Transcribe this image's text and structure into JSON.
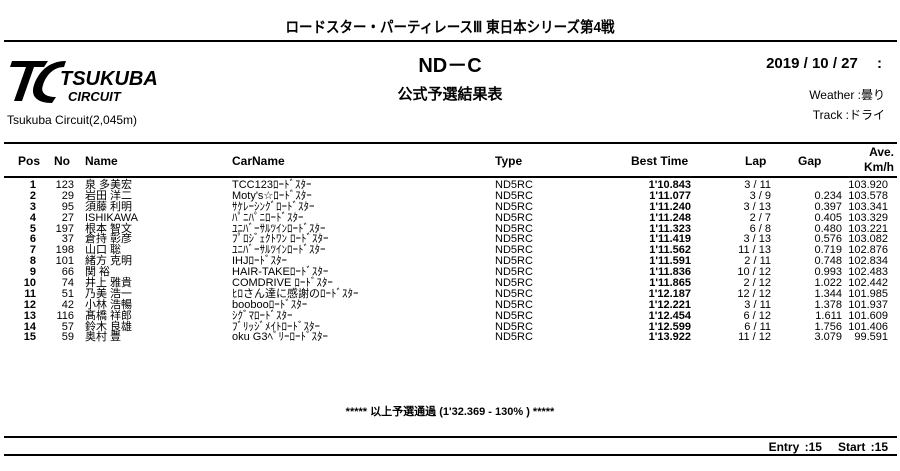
{
  "event_title": "ロードスター・パーティレースⅢ 東日本シリーズ第4戦",
  "logo": {
    "text_main": "TSUKUBA",
    "text_sub": "CIRCUIT",
    "mark": "TC"
  },
  "circuit": "Tsukuba Circuit(2,045m)",
  "class": "ND－C",
  "session": "公式予選結果表",
  "date": "2019 / 10 / 27　 :",
  "weather": "Weather :曇り",
  "track": "Track :ドライ",
  "headers": {
    "pos": "Pos",
    "no": "No",
    "name": "Name",
    "car": "CarName",
    "type": "Type",
    "best": "Best Time",
    "lap": "Lap",
    "gap": "Gap",
    "ave1": "Ave.",
    "ave2": "Km/h"
  },
  "rows": [
    {
      "pos": "1",
      "no": "123",
      "name": "泉 多美宏",
      "car": "TCC123ﾛｰﾄﾞｽﾀｰ",
      "type": "ND5RC",
      "best": "1'10.843",
      "lap": "3 / 11",
      "gap": "",
      "ave": "103.920"
    },
    {
      "pos": "2",
      "no": "29",
      "name": "岩田 洋二",
      "car": "Moty's☆ﾛｰﾄﾞｽﾀｰ",
      "type": "ND5RC",
      "best": "1'11.077",
      "lap": "3 / 9",
      "gap": "0.234",
      "ave": "103.578"
    },
    {
      "pos": "3",
      "no": "95",
      "name": "須藤 利明",
      "car": "ｻｹﾚｰｼﾝｸﾞﾛｰﾄﾞｽﾀｰ",
      "type": "ND5RC",
      "best": "1'11.240",
      "lap": "3 / 13",
      "gap": "0.397",
      "ave": "103.341"
    },
    {
      "pos": "4",
      "no": "27",
      "name": "ISHIKAWA",
      "car": "ﾊﾟﾆﾊﾟﾆﾛｰﾄﾞｽﾀｰ",
      "type": "ND5RC",
      "best": "1'11.248",
      "lap": "2 / 7",
      "gap": "0.405",
      "ave": "103.329"
    },
    {
      "pos": "5",
      "no": "197",
      "name": "根本 智文",
      "car": "ﾕﾆﾊﾞｰｻﾙﾂｲﾝﾛｰﾄﾞｽﾀｰ",
      "type": "ND5RC",
      "best": "1'11.323",
      "lap": "6 / 8",
      "gap": "0.480",
      "ave": "103.221"
    },
    {
      "pos": "6",
      "no": "37",
      "name": "倉持 彰彦",
      "car": "ﾌﾟﾛｼﾞｪｸﾄﾜﾝ ﾛｰﾄﾞｽﾀｰ",
      "type": "ND5RC",
      "best": "1'11.419",
      "lap": "3 / 13",
      "gap": "0.576",
      "ave": "103.082"
    },
    {
      "pos": "7",
      "no": "198",
      "name": "山口 聡",
      "car": "ﾕﾆﾊﾞｰｻﾙﾂｲﾝﾛｰﾄﾞｽﾀｰ",
      "type": "ND5RC",
      "best": "1'11.562",
      "lap": "11 / 13",
      "gap": "0.719",
      "ave": "102.876"
    },
    {
      "pos": "8",
      "no": "101",
      "name": "緒方 克明",
      "car": "IHJﾛｰﾄﾞｽﾀｰ",
      "type": "ND5RC",
      "best": "1'11.591",
      "lap": "2 / 11",
      "gap": "0.748",
      "ave": "102.834"
    },
    {
      "pos": "9",
      "no": "66",
      "name": "関 裕",
      "car": "HAIR-TAKEﾛｰﾄﾞｽﾀｰ",
      "type": "ND5RC",
      "best": "1'11.836",
      "lap": "10 / 12",
      "gap": "0.993",
      "ave": "102.483"
    },
    {
      "pos": "10",
      "no": "74",
      "name": "井上 雅貴",
      "car": "COMDRIVE ﾛｰﾄﾞｽﾀｰ",
      "type": "ND5RC",
      "best": "1'11.865",
      "lap": "2 / 12",
      "gap": "1.022",
      "ave": "102.442"
    },
    {
      "pos": "11",
      "no": "51",
      "name": "乃美 浩一",
      "car": "ﾋﾛさん達に感謝のﾛｰﾄﾞｽﾀｰ",
      "type": "ND5RC",
      "best": "1'12.187",
      "lap": "12 / 12",
      "gap": "1.344",
      "ave": "101.985"
    },
    {
      "pos": "12",
      "no": "42",
      "name": "小林 浩暢",
      "car": "boobooﾛｰﾄﾞｽﾀｰ",
      "type": "ND5RC",
      "best": "1'12.221",
      "lap": "3 / 11",
      "gap": "1.378",
      "ave": "101.937"
    },
    {
      "pos": "13",
      "no": "116",
      "name": "髙橋 祥郎",
      "car": "ｼｸﾞﾏﾛｰﾄﾞｽﾀｰ",
      "type": "ND5RC",
      "best": "1'12.454",
      "lap": "6 / 12",
      "gap": "1.611",
      "ave": "101.609"
    },
    {
      "pos": "14",
      "no": "57",
      "name": "鈴木 良雄",
      "car": "ﾌﾞﾘｯｼﾞﾒｲﾄﾛｰﾄﾞｽﾀｰ",
      "type": "ND5RC",
      "best": "1'12.599",
      "lap": "6 / 11",
      "gap": "1.756",
      "ave": "101.406"
    },
    {
      "pos": "15",
      "no": "59",
      "name": "奥村 豊",
      "car": "oku G3ﾍﾞﾘｰﾛｰﾄﾞｽﾀｰ",
      "type": "ND5RC",
      "best": "1'13.922",
      "lap": "11 / 12",
      "gap": "3.079",
      "ave": "99.591"
    }
  ],
  "qualify_note": "***** 以上予選通過 (1'32.369 - 130% ) *****",
  "footer": {
    "entry": "Entry :15",
    "start": "Start :15"
  }
}
